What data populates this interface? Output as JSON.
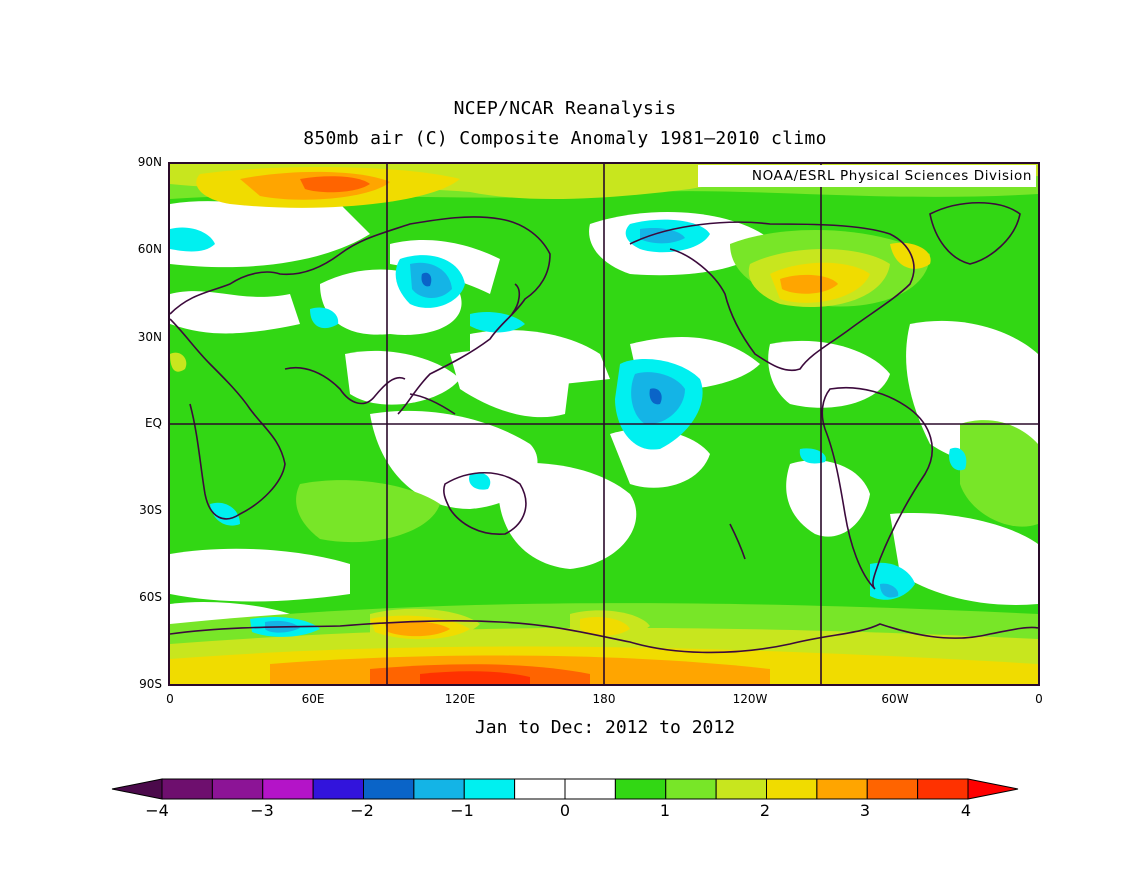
{
  "title": "NCEP/NCAR Reanalysis",
  "subtitle_top": "850mb air (C) Composite Anomaly 1981–2010 climo",
  "credit": "NOAA/ESRL Physical Sciences Division",
  "date_range": "Jan to Dec: 2012 to 2012",
  "axes": {
    "lat_labels": [
      "90N",
      "60N",
      "30N",
      "EQ",
      "30S",
      "60S",
      "90S"
    ],
    "lon_labels": [
      "0",
      "60E",
      "120E",
      "180",
      "120W",
      "60W",
      "0"
    ]
  },
  "colorbar": {
    "colors": [
      "#4b0a4b",
      "#6e0f6e",
      "#8c1496",
      "#b414c8",
      "#3214dc",
      "#0a64c8",
      "#14b4e6",
      "#00f0f0",
      "#ffffff",
      "#ffffff",
      "#32d714",
      "#78e628",
      "#c8e61e",
      "#f0dc00",
      "#ffa500",
      "#ff6400",
      "#ff3200",
      "#ff0000"
    ],
    "tick_labels": [
      "−4",
      "−3",
      "−2",
      "−1",
      "0",
      "1",
      "2",
      "3",
      "4"
    ]
  },
  "map_colors": {
    "green": "#32d714",
    "light_green": "#78e628",
    "yellow_green": "#c8e61e",
    "yellow": "#f0dc00",
    "orange": "#ffa500",
    "dark_orange": "#ff6400",
    "red": "#ff3200",
    "cyan": "#00f0f0",
    "light_blue": "#14b4e6",
    "blue": "#0a64c8",
    "coast": "#3c0a3c",
    "grid": "#2a0a2a"
  }
}
